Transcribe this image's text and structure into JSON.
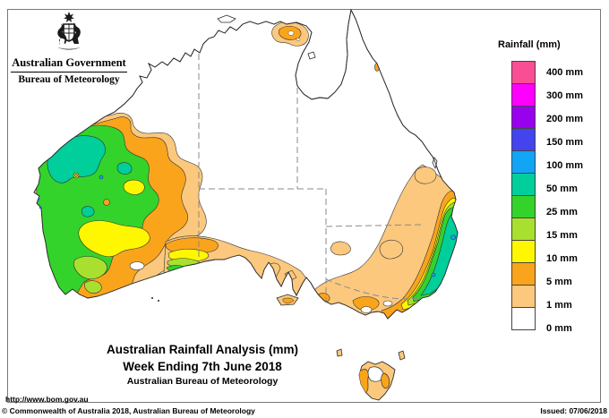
{
  "header": {
    "government": "Australian Government",
    "bureau": "Bureau of Meteorology"
  },
  "legend": {
    "title": "Rainfall (mm)",
    "entries": [
      {
        "label": "400 mm",
        "color": "#F94E93"
      },
      {
        "label": "300 mm",
        "color": "#FF00FF"
      },
      {
        "label": "200 mm",
        "color": "#9900EE"
      },
      {
        "label": "150 mm",
        "color": "#4344EE"
      },
      {
        "label": "100 mm",
        "color": "#11A5F5"
      },
      {
        "label": "50 mm",
        "color": "#00CE9B"
      },
      {
        "label": "25 mm",
        "color": "#33D32B"
      },
      {
        "label": "15 mm",
        "color": "#A9E030"
      },
      {
        "label": "10 mm",
        "color": "#FFF700"
      },
      {
        "label": "5 mm",
        "color": "#FAA41C"
      },
      {
        "label": "1 mm",
        "color": "#FBC87D"
      },
      {
        "label": "0 mm",
        "color": "#FFFFFF"
      }
    ]
  },
  "caption": {
    "line1": "Australian Rainfall Analysis (mm)",
    "line2": "Week Ending 7th June 2018",
    "line3": "Australian Bureau of Meteorology"
  },
  "footer": {
    "url": "http://www.bom.gov.au",
    "copyright": "© Commonwealth of Australia 2018, Australian Bureau of Meteorology",
    "issued": "Issued: 07/06/2018"
  }
}
